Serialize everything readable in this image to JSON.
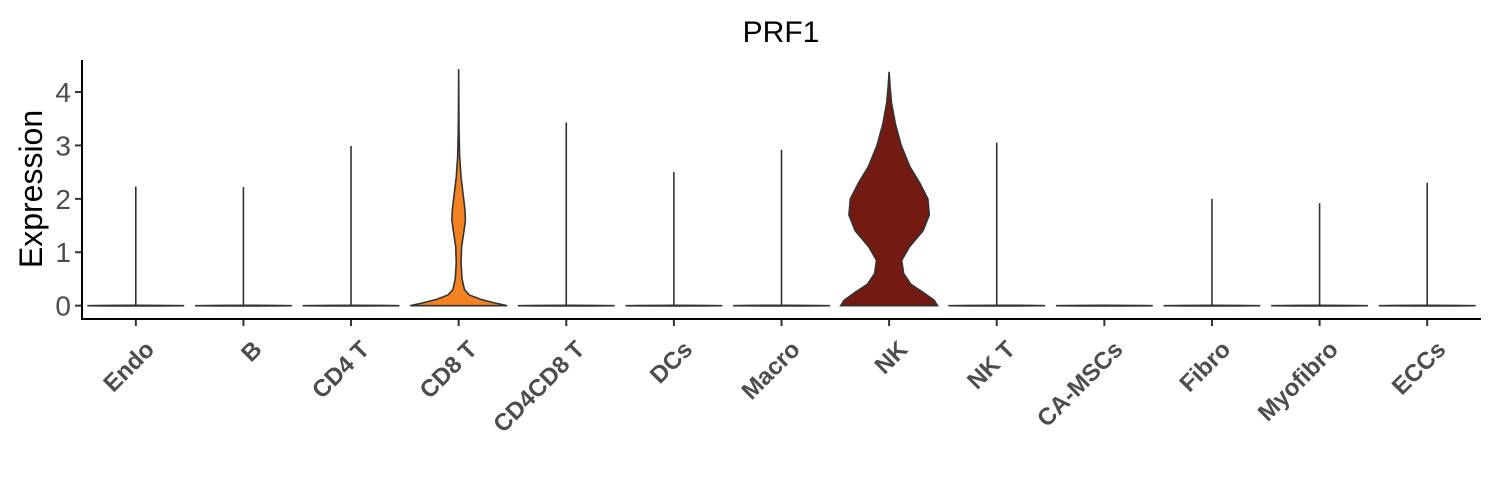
{
  "chart_data": {
    "type": "violin",
    "title": "PRF1",
    "xlabel": "",
    "ylabel": "Expression",
    "ylim": [
      -0.25,
      4.6
    ],
    "yticks": [
      0,
      1,
      2,
      3,
      4
    ],
    "grid": false,
    "legend": "none",
    "categories": [
      "Endo",
      "B",
      "CD4 T",
      "CD8 T",
      "CD4CD8 T",
      "DCs",
      "Macro",
      "NK",
      "NK T",
      "CA-MSCs",
      "Fibro",
      "Myofibro",
      "ECCs"
    ],
    "max_values": [
      2.23,
      2.22,
      2.99,
      4.43,
      3.43,
      2.5,
      2.92,
      4.38,
      3.05,
      0.0,
      2.0,
      1.92,
      2.3
    ],
    "fill_colors": [
      "#ffffff",
      "#ffffff",
      "#ffffff",
      "#f58220",
      "#ffffff",
      "#ffffff",
      "#ffffff",
      "#731b12",
      "#ffffff",
      "#ffffff",
      "#ffffff",
      "#ffffff",
      "#ffffff"
    ],
    "density_profiles": [
      null,
      null,
      null,
      [
        [
          0.0,
          1.0
        ],
        [
          0.05,
          0.75
        ],
        [
          0.12,
          0.45
        ],
        [
          0.2,
          0.22
        ],
        [
          0.3,
          0.12
        ],
        [
          0.5,
          0.07
        ],
        [
          0.8,
          0.05
        ],
        [
          1.1,
          0.06
        ],
        [
          1.4,
          0.11
        ],
        [
          1.6,
          0.14
        ],
        [
          1.8,
          0.13
        ],
        [
          2.1,
          0.09
        ],
        [
          2.4,
          0.05
        ],
        [
          2.8,
          0.02
        ],
        [
          3.2,
          0.01
        ],
        [
          3.6,
          0.005
        ],
        [
          4.43,
          0.0
        ]
      ],
      null,
      null,
      null,
      [
        [
          0.0,
          1.0
        ],
        [
          0.1,
          0.93
        ],
        [
          0.25,
          0.7
        ],
        [
          0.4,
          0.45
        ],
        [
          0.6,
          0.3
        ],
        [
          0.85,
          0.26
        ],
        [
          1.1,
          0.42
        ],
        [
          1.4,
          0.7
        ],
        [
          1.7,
          0.83
        ],
        [
          2.0,
          0.8
        ],
        [
          2.3,
          0.63
        ],
        [
          2.6,
          0.43
        ],
        [
          3.0,
          0.25
        ],
        [
          3.4,
          0.13
        ],
        [
          3.8,
          0.05
        ],
        [
          4.1,
          0.02
        ],
        [
          4.38,
          0.0
        ]
      ],
      null,
      null,
      null,
      null,
      null
    ]
  }
}
